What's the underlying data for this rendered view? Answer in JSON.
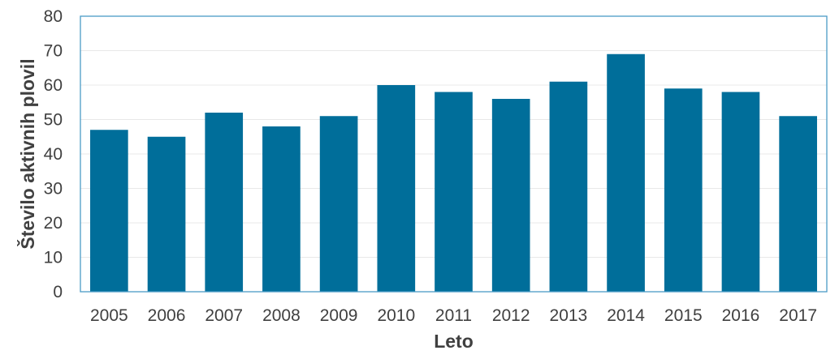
{
  "chart_data": {
    "type": "bar",
    "categories": [
      "2005",
      "2006",
      "2007",
      "2008",
      "2009",
      "2010",
      "2011",
      "2012",
      "2013",
      "2014",
      "2015",
      "2016",
      "2017"
    ],
    "values": [
      47,
      45,
      52,
      48,
      51,
      60,
      58,
      56,
      61,
      69,
      59,
      58,
      51
    ],
    "yticks": [
      "0",
      "10",
      "20",
      "30",
      "40",
      "50",
      "60",
      "70",
      "80"
    ],
    "xlabel": "Leto",
    "ylabel": "Število aktivnih plovil",
    "ylim": [
      0,
      80
    ],
    "grid": true,
    "legend": "none",
    "colors": {
      "bar": "#006e9a",
      "axis": "#4a9cc7",
      "grid": "#e8e8e8"
    }
  }
}
